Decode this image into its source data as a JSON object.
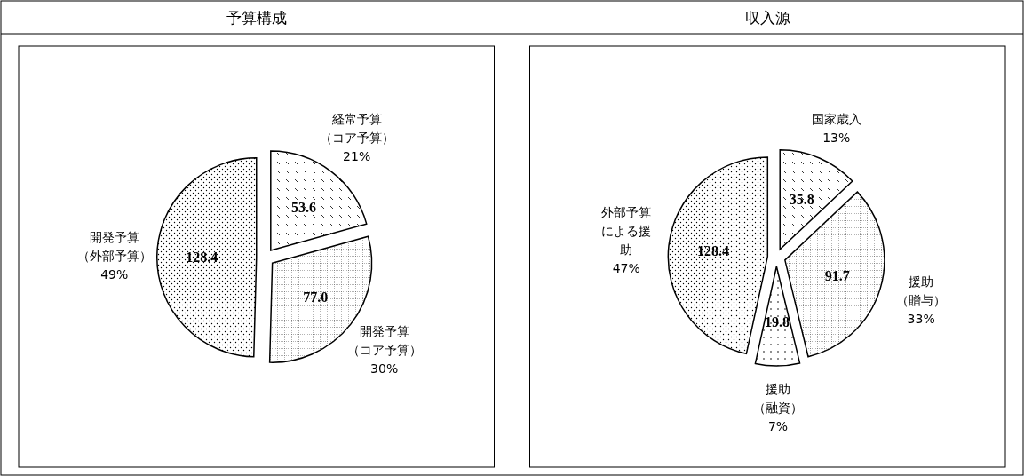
{
  "chart_data": [
    {
      "type": "pie",
      "title": "予算構成",
      "categories": [
        "経常予算（コア予算）",
        "開発予算（コア予算）",
        "開発予算（外部予算）"
      ],
      "values": [
        53.6,
        77.0,
        128.4
      ],
      "value_labels": [
        "53.6",
        "77.0",
        "128.4"
      ],
      "annotations": [
        {
          "text": "21%",
          "x": "経常予算（コア予算）"
        },
        {
          "text": "30%",
          "x": "開発予算（コア予算）"
        },
        {
          "text": "49%",
          "x": "開発予算（外部予算）"
        }
      ]
    },
    {
      "type": "pie",
      "title": "収入源",
      "categories": [
        "国家歳入",
        "援助（贈与）",
        "援助（融資）",
        "外部予算による援助"
      ],
      "values": [
        35.8,
        91.7,
        19.8,
        128.4
      ],
      "value_labels": [
        "35.8",
        "91.7",
        "19.8",
        "128.4"
      ],
      "annotations": [
        {
          "text": "13%",
          "x": "国家歳入"
        },
        {
          "text": "33%",
          "x": "援助（贈与）"
        },
        {
          "text": "7%",
          "x": "援助（融資）"
        },
        {
          "text": "47%",
          "x": "外部予算による援助"
        }
      ]
    }
  ]
}
